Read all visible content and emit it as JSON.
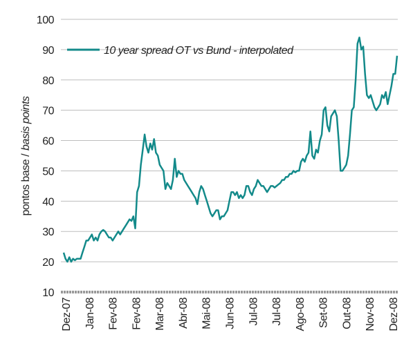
{
  "chart_data": {
    "type": "line",
    "ylabel": [
      "pontos base /",
      "basis points"
    ],
    "x_labels": [
      "Dez-07",
      "Jan-08",
      "Fev-08",
      "Fev-08",
      "Mar-08",
      "Abr-08",
      "Mai-08",
      "Jun-08",
      "Jul-08",
      "Jul-08",
      "Ago-08",
      "Set-08",
      "Out-08",
      "Nov-08",
      "Dez-08"
    ],
    "series": [
      {
        "name": "10 year spread OT vs Bund - interpolated",
        "color": "#138a8a",
        "values": [
          23,
          21,
          20,
          21.5,
          20,
          21,
          20.5,
          21,
          21,
          21,
          23,
          25,
          27,
          27,
          28,
          29,
          27,
          28,
          27,
          29,
          30,
          30.5,
          30,
          29,
          28,
          28,
          27,
          28,
          29,
          30,
          29,
          30,
          31,
          32,
          33,
          34,
          33.5,
          35,
          31,
          43,
          45,
          52,
          57,
          62,
          58,
          56,
          59,
          57,
          60.5,
          56,
          55,
          52,
          51,
          50,
          44,
          46,
          45,
          44,
          47,
          54,
          48,
          50,
          49,
          49,
          47,
          46,
          45,
          44,
          43,
          42,
          41,
          39,
          43,
          45,
          44,
          42,
          40,
          38,
          36,
          35,
          36,
          37,
          37,
          34,
          35,
          35,
          36,
          37,
          40,
          43,
          43,
          42,
          43,
          41,
          42,
          41,
          42,
          45,
          45,
          43,
          42,
          44,
          45,
          47,
          46,
          45,
          45,
          44,
          43,
          44,
          45,
          45,
          44.5,
          45,
          45.5,
          46,
          47,
          47,
          48,
          48,
          49,
          49,
          50,
          49.5,
          50,
          50,
          53,
          54,
          53,
          55,
          56,
          63,
          55,
          54,
          57,
          56,
          60,
          62,
          70,
          71,
          65,
          63,
          68,
          69,
          70,
          68,
          60,
          50,
          50,
          51,
          52,
          55,
          62,
          70,
          71,
          80,
          92,
          94,
          90,
          91,
          82,
          75,
          74,
          75,
          73,
          71,
          70,
          71,
          72,
          75,
          74,
          76,
          72,
          75,
          78,
          82,
          82,
          88
        ]
      }
    ],
    "ylim": [
      10,
      100
    ],
    "yticks": [
      10,
      20,
      30,
      40,
      50,
      60,
      70,
      80,
      90,
      100
    ],
    "grid": true,
    "legend": "top-left"
  }
}
